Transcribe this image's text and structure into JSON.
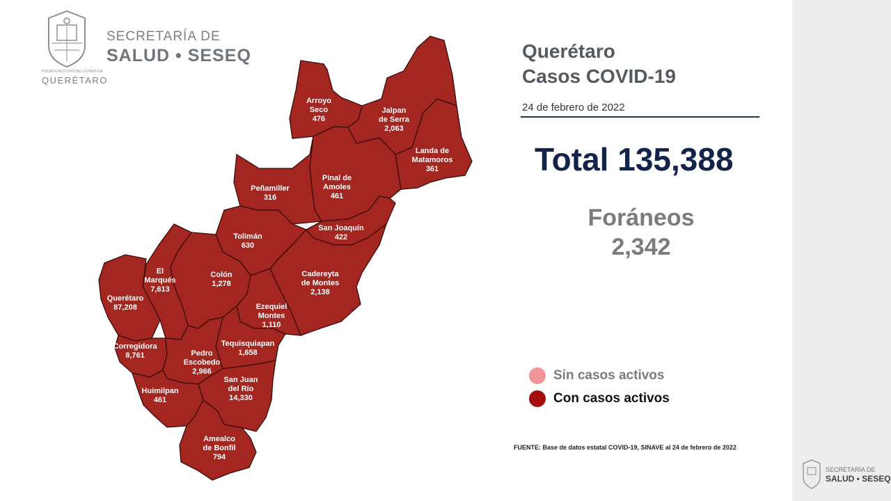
{
  "header": {
    "org_line1": "SECRETARÍA DE",
    "org_line2": "SALUD • SESEQ",
    "gov_small": "PODER EJECUTIVO DEL ESTADO DE",
    "state": "QUERÉTARO"
  },
  "title": {
    "line1": "Querétaro",
    "line2": "Casos COVID-19"
  },
  "date": "24 de febrero de 2022",
  "total": "Total 135,388",
  "foraneos": {
    "label": "Foráneos",
    "value": "2,342"
  },
  "legend": [
    {
      "label": "Sin casos activos",
      "color": "#f0969a",
      "text_color": "#7b7b7b"
    },
    {
      "label": "Con casos activos",
      "color": "#a30e0c",
      "text_color": "#111111"
    }
  ],
  "source": "FUENTE: Base de datos estatal  COVID-19,  SINAVE  al 24 de febrero de 2022",
  "mini_logo": {
    "line1": "SECRETARÍA DE",
    "line2": "SALUD • SESEQ"
  },
  "colors": {
    "region_fill": "#a32620",
    "title_dark": "#14234a"
  },
  "municipalities": [
    {
      "name": [
        "Arroyo",
        "Seco"
      ],
      "cases": "476",
      "status": "Con casos activos"
    },
    {
      "name": [
        "Jalpan",
        "de Serra"
      ],
      "cases": "2,063",
      "status": "Con casos activos"
    },
    {
      "name": [
        "Landa de",
        "Matamoros"
      ],
      "cases": "361",
      "status": "Con casos activos"
    },
    {
      "name": [
        "Pinal de",
        "Amoles"
      ],
      "cases": "461",
      "status": "Con casos activos"
    },
    {
      "name": [
        "Peñamiller"
      ],
      "cases": "316",
      "status": "Con casos activos"
    },
    {
      "name": [
        "San Joaquín"
      ],
      "cases": "422",
      "status": "Con casos activos"
    },
    {
      "name": [
        "Tolimán"
      ],
      "cases": "630",
      "status": "Con casos activos"
    },
    {
      "name": [
        "Cadereyta",
        "de Montes"
      ],
      "cases": "2,138",
      "status": "Con casos activos"
    },
    {
      "name": [
        "El",
        "Marqués"
      ],
      "cases": "7,613",
      "status": "Con casos activos"
    },
    {
      "name": [
        "Colón"
      ],
      "cases": "1,278",
      "status": "Con casos activos"
    },
    {
      "name": [
        "Querétaro"
      ],
      "cases": "87,208",
      "status": "Con casos activos"
    },
    {
      "name": [
        "Ezequiel",
        "Montes"
      ],
      "cases": "1,110",
      "status": "Con casos activos"
    },
    {
      "name": [
        "Tequisquiapan"
      ],
      "cases": "1,658",
      "status": "Con casos activos"
    },
    {
      "name": [
        "Corregidora"
      ],
      "cases": "8,761",
      "status": "Con casos activos"
    },
    {
      "name": [
        "Pedro",
        "Escobedo"
      ],
      "cases": "2,966",
      "status": "Con casos activos"
    },
    {
      "name": [
        "San Juan",
        "del Río"
      ],
      "cases": "14,330",
      "status": "Con casos activos"
    },
    {
      "name": [
        "Huimilpan"
      ],
      "cases": "461",
      "status": "Con casos activos"
    },
    {
      "name": [
        "Amealco",
        "de Bonfil"
      ],
      "cases": "794",
      "status": "Con casos activos"
    }
  ]
}
